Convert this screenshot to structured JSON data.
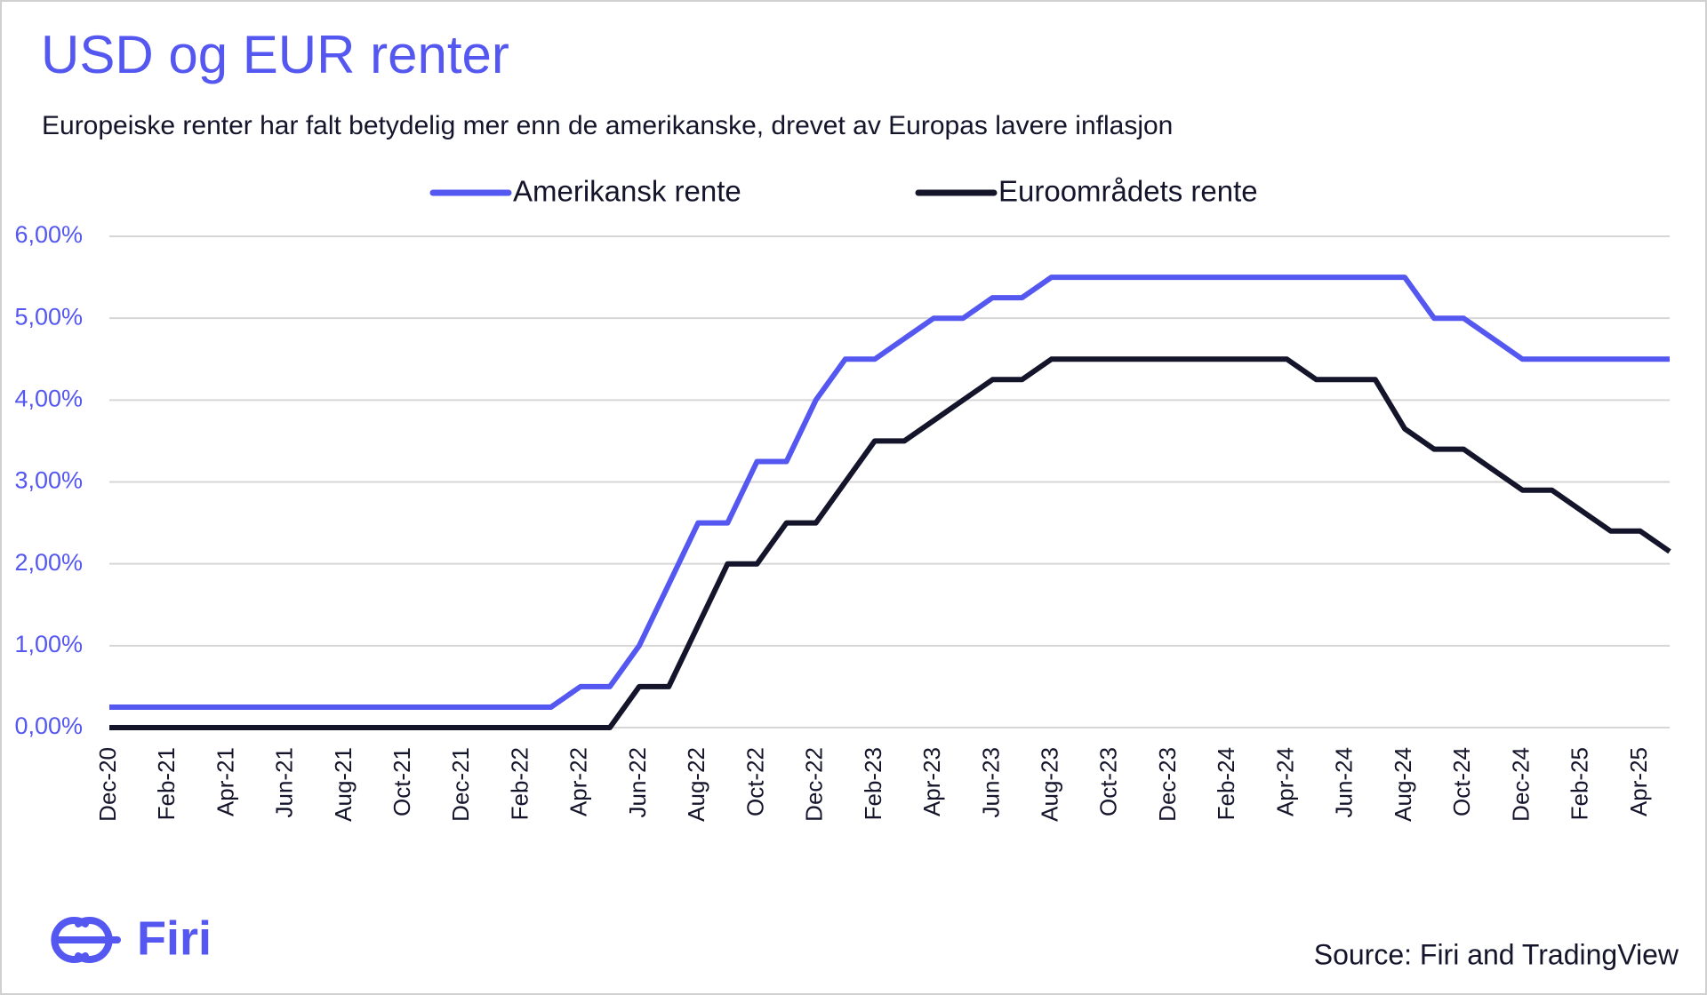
{
  "chart_data": {
    "type": "line",
    "title": "USD og EUR renter",
    "subtitle": "Europeiske renter har falt betydelig mer enn de amerikanske, drevet av Europas lavere inflasjon",
    "categories": [
      "Dec-20",
      null,
      "Feb-21",
      null,
      "Apr-21",
      null,
      "Jun-21",
      null,
      "Aug-21",
      null,
      "Oct-21",
      null,
      "Dec-21",
      null,
      "Feb-22",
      null,
      "Apr-22",
      null,
      "Jun-22",
      null,
      "Aug-22",
      null,
      "Oct-22",
      null,
      "Dec-22",
      null,
      "Feb-23",
      null,
      "Apr-23",
      null,
      "Jun-23",
      null,
      "Aug-23",
      null,
      "Oct-23",
      null,
      "Dec-23",
      null,
      "Feb-24",
      null,
      "Apr-24",
      null,
      "Jun-24",
      null,
      "Aug-24",
      null,
      "Oct-24",
      null,
      "Dec-24",
      null,
      "Feb-25",
      null,
      "Apr-25",
      null
    ],
    "series": [
      {
        "name": "Amerikansk rente",
        "color": "#5457f0",
        "values": [
          0.25,
          0.25,
          0.25,
          0.25,
          0.25,
          0.25,
          0.25,
          0.25,
          0.25,
          0.25,
          0.25,
          0.25,
          0.25,
          0.25,
          0.25,
          0.25,
          0.5,
          0.5,
          1.0,
          1.75,
          2.5,
          2.5,
          3.25,
          3.25,
          4.0,
          4.5,
          4.5,
          4.75,
          5.0,
          5.0,
          5.25,
          5.25,
          5.5,
          5.5,
          5.5,
          5.5,
          5.5,
          5.5,
          5.5,
          5.5,
          5.5,
          5.5,
          5.5,
          5.5,
          5.5,
          5.0,
          5.0,
          4.75,
          4.5,
          4.5,
          4.5,
          4.5,
          4.5,
          4.5
        ]
      },
      {
        "name": "Euroområdets rente",
        "color": "#14142b",
        "values": [
          0,
          0,
          0,
          0,
          0,
          0,
          0,
          0,
          0,
          0,
          0,
          0,
          0,
          0,
          0,
          0,
          0,
          0,
          0.5,
          0.5,
          1.25,
          2.0,
          2.0,
          2.5,
          2.5,
          3.0,
          3.5,
          3.5,
          3.75,
          4.0,
          4.25,
          4.25,
          4.5,
          4.5,
          4.5,
          4.5,
          4.5,
          4.5,
          4.5,
          4.5,
          4.5,
          4.25,
          4.25,
          4.25,
          3.65,
          3.4,
          3.4,
          3.15,
          2.9,
          2.9,
          2.65,
          2.4,
          2.4,
          2.15
        ]
      }
    ],
    "ylim": [
      0,
      6
    ],
    "yticks": [
      {
        "value": 0,
        "label": "0,00%"
      },
      {
        "value": 1,
        "label": "1,00%"
      },
      {
        "value": 2,
        "label": "2,00%"
      },
      {
        "value": 3,
        "label": "3,00%"
      },
      {
        "value": 4,
        "label": "4,00%"
      },
      {
        "value": 5,
        "label": "5,00%"
      },
      {
        "value": 6,
        "label": "6,00%"
      }
    ],
    "grid": true,
    "legend": "top"
  },
  "footer": {
    "logo": "Firi",
    "source": "Source: Firi and TradingView"
  }
}
